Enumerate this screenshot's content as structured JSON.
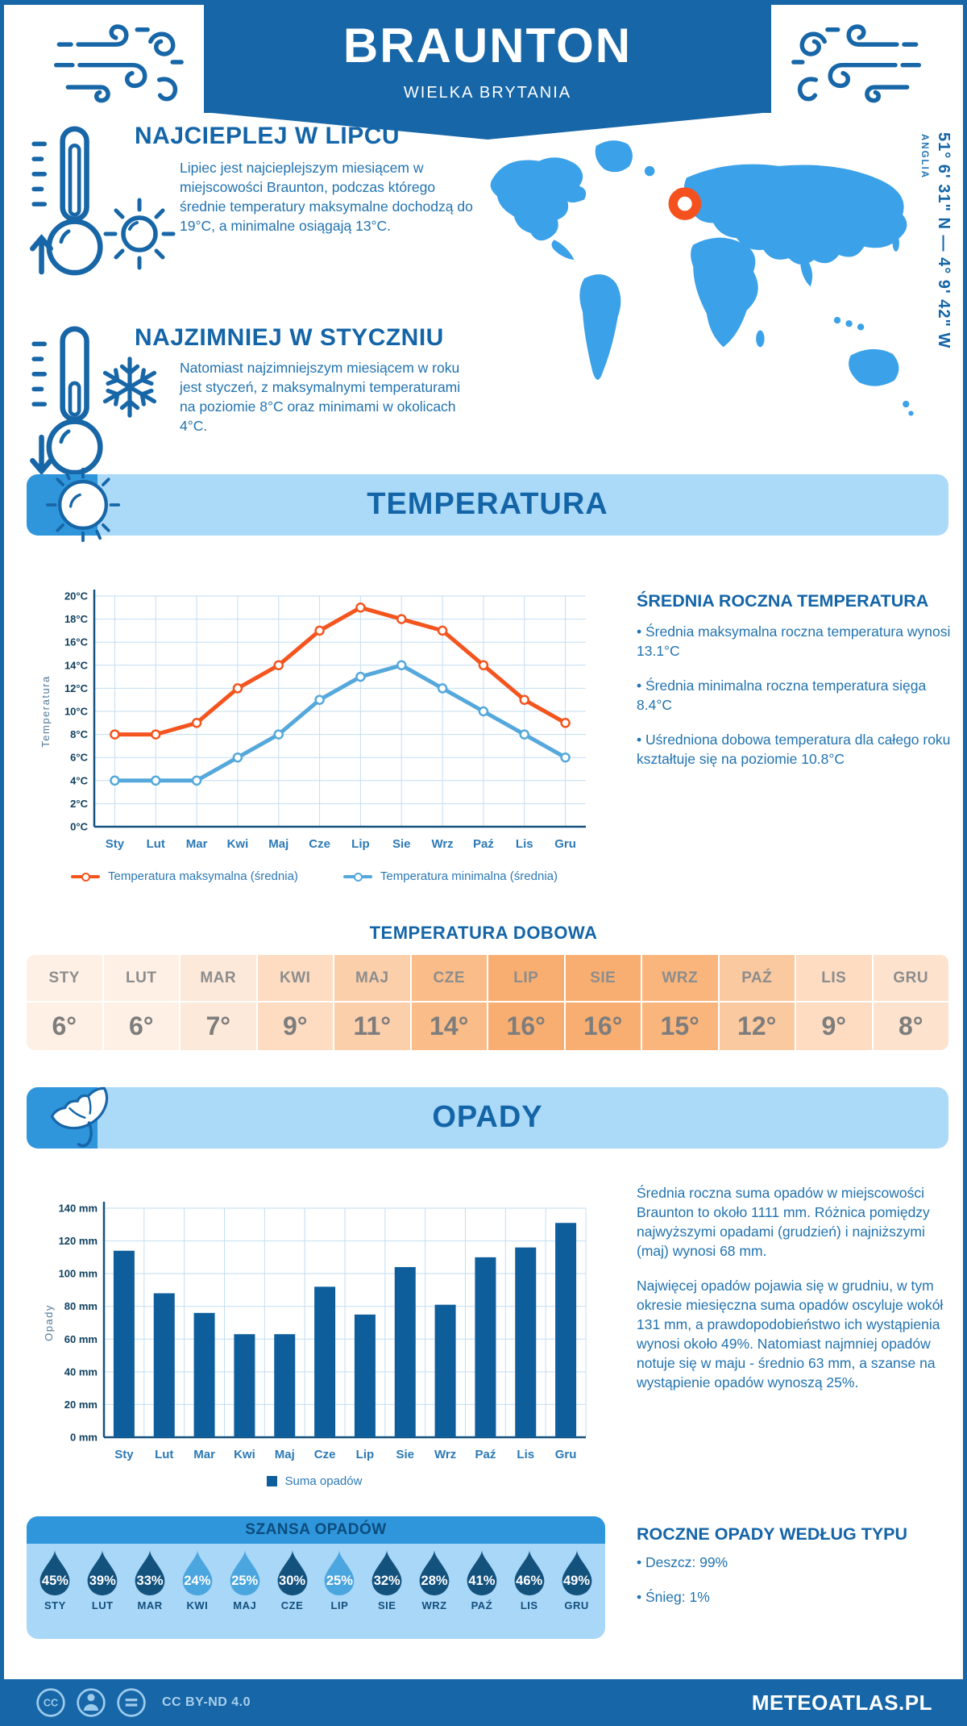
{
  "ui": {
    "bullet_char": "•"
  },
  "header": {
    "title": "BRAUNTON",
    "subtitle": "WIELKA BRYTANIA"
  },
  "location": {
    "coordinates": "51° 6' 31\" N — 4° 9' 42\" W",
    "region_label": "ANGLIA"
  },
  "highlights": {
    "warmest": {
      "title": "NAJCIEPLEJ W LIPCU",
      "text": "Lipiec jest najcieplejszym miesiącem w miejscowości Braunton, podczas którego średnie temperatury maksymalne dochodzą do 19°C, a minimalne osiągają 13°C."
    },
    "coldest": {
      "title": "NAJZIMNIEJ W STYCZNIU",
      "text": "Natomiast najzimniejszym miesiącem w roku jest styczeń, z maksymalnymi temperaturami na poziomie 8°C oraz minimami w okolicach 4°C."
    }
  },
  "temperature_section": {
    "title": "TEMPERATURA",
    "annual": {
      "title": "ŚREDNIA ROCZNA TEMPERATURA",
      "bullets": [
        "Średnia maksymalna roczna temperatura wynosi 13.1°C",
        "Średnia minimalna roczna temperatura sięga 8.4°C",
        "Uśredniona dobowa temperatura dla całego roku kształtuje się na poziomie 10.8°C"
      ]
    },
    "daily": {
      "title": "TEMPERATURA DOBOWA",
      "months": [
        "STY",
        "LUT",
        "MAR",
        "KWI",
        "MAJ",
        "CZE",
        "LIP",
        "SIE",
        "WRZ",
        "PAŹ",
        "LIS",
        "GRU"
      ],
      "values": [
        "6°",
        "6°",
        "7°",
        "9°",
        "11°",
        "14°",
        "16°",
        "16°",
        "15°",
        "12°",
        "9°",
        "8°"
      ],
      "values_numeric": [
        6,
        6,
        7,
        9,
        11,
        14,
        16,
        16,
        15,
        12,
        9,
        8
      ]
    }
  },
  "precipitation_section": {
    "title": "OPADY",
    "paragraphs": [
      "Średnia roczna suma opadów w miejscowości Braunton to około 1111 mm. Różnica pomiędzy najwyższymi opadami (grudzień) i najniższymi (maj) wynosi 68 mm.",
      "Najwięcej opadów pojawia się w grudniu, w tym okresie miesięczna suma opadów oscyluje wokół 131 mm, a prawdopodobieństwo ich wystąpienia wynosi około 49%. Natomiast najmniej opadów notuje się w maju - średnio 63 mm, a szanse na wystąpienie opadów wynoszą 25%."
    ],
    "chance": {
      "title": "SZANSA OPADÓW",
      "months": [
        "STY",
        "LUT",
        "MAR",
        "KWI",
        "MAJ",
        "CZE",
        "LIP",
        "SIE",
        "WRZ",
        "PAŹ",
        "LIS",
        "GRU"
      ],
      "values": [
        45,
        39,
        33,
        24,
        25,
        30,
        25,
        32,
        28,
        41,
        46,
        49
      ]
    },
    "types": {
      "title": "ROCZNE OPADY WEDŁUG TYPU",
      "bullets": [
        "Deszcz: 99%",
        "Śnieg: 1%"
      ]
    }
  },
  "chart_data": [
    {
      "type": "line",
      "categories": [
        "Sty",
        "Lut",
        "Mar",
        "Kwi",
        "Maj",
        "Cze",
        "Lip",
        "Sie",
        "Wrz",
        "Paź",
        "Lis",
        "Gru"
      ],
      "series": [
        {
          "name": "Temperatura maksymalna (średnia)",
          "color": "#F4551F",
          "values": [
            8,
            8,
            9,
            12,
            14,
            17,
            19,
            18,
            17,
            14,
            11,
            9
          ]
        },
        {
          "name": "Temperatura minimalna (średnia)",
          "color": "#55A8DC",
          "values": [
            4,
            4,
            4,
            6,
            8,
            11,
            13,
            14,
            12,
            10,
            8,
            6
          ]
        }
      ],
      "ylabel": "Temperatura",
      "ytick_suffix": "°C",
      "ylim": [
        0,
        20
      ],
      "ystep": 2,
      "grid": true,
      "legend_position": "bottom"
    },
    {
      "type": "bar",
      "categories": [
        "Sty",
        "Lut",
        "Mar",
        "Kwi",
        "Maj",
        "Cze",
        "Lip",
        "Sie",
        "Wrz",
        "Paź",
        "Lis",
        "Gru"
      ],
      "series": [
        {
          "name": "Suma opadów",
          "color": "#0E5E9C",
          "values": [
            114,
            88,
            76,
            63,
            63,
            92,
            75,
            104,
            81,
            110,
            116,
            131
          ]
        }
      ],
      "ylabel": "Opady",
      "ytick_suffix": " mm",
      "ylim": [
        0,
        140
      ],
      "ystep": 20,
      "grid": true,
      "legend_position": "bottom"
    }
  ],
  "footer": {
    "license": "CC BY-ND 4.0",
    "site": "METEOATLAS.PL"
  },
  "colors": {
    "primary": "#1766A7",
    "heading": "#1465A8",
    "body_text": "#2273B0",
    "band_light": "#ABD9F8",
    "band_accent": "#2F96DC",
    "map_fill": "#3BA1E8",
    "marker_orange": "#F4511E",
    "grid": "#C3DEF2",
    "axis": "#16527E",
    "table_base_rgb": "247,140,52",
    "drop_dark": "#14527E",
    "drop_light": "#4BA6DF"
  }
}
